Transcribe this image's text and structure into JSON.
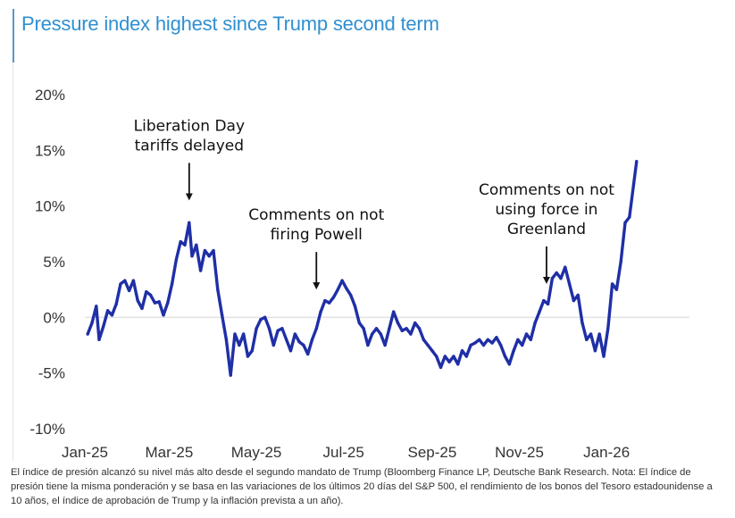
{
  "chart_data": {
    "type": "line",
    "title": "Pressure index highest since Trump second term",
    "xlabel": "",
    "ylabel": "",
    "ylim": [
      -10,
      20
    ],
    "yticks": [
      20,
      15,
      10,
      5,
      0,
      -5,
      -10
    ],
    "ytick_labels": [
      "20%",
      "15%",
      "10%",
      "5%",
      "0%",
      "-5%",
      "-10%"
    ],
    "x_range": [
      "2025-01-01",
      "2026-02-28"
    ],
    "xticks": [
      "2025-01-01",
      "2025-03-01",
      "2025-05-01",
      "2025-07-01",
      "2025-09-01",
      "2025-11-01",
      "2026-01-01"
    ],
    "xtick_labels": [
      "Jan-25",
      "Mar-25",
      "May-25",
      "Jul-25",
      "Sep-25",
      "Nov-25",
      "Jan-26"
    ],
    "grid": false,
    "reference_line": 0,
    "series": [
      {
        "name": "",
        "color": "#1f2fa6",
        "points": [
          [
            "2025-01-03",
            -1.5
          ],
          [
            "2025-01-06",
            -0.5
          ],
          [
            "2025-01-09",
            1.0
          ],
          [
            "2025-01-11",
            -2.0
          ],
          [
            "2025-01-14",
            -0.8
          ],
          [
            "2025-01-17",
            0.6
          ],
          [
            "2025-01-20",
            0.2
          ],
          [
            "2025-01-23",
            1.2
          ],
          [
            "2025-01-26",
            3.0
          ],
          [
            "2025-01-29",
            3.3
          ],
          [
            "2025-02-01",
            2.4
          ],
          [
            "2025-02-04",
            3.3
          ],
          [
            "2025-02-07",
            1.5
          ],
          [
            "2025-02-10",
            0.8
          ],
          [
            "2025-02-13",
            2.3
          ],
          [
            "2025-02-16",
            2.0
          ],
          [
            "2025-02-19",
            1.3
          ],
          [
            "2025-02-22",
            1.4
          ],
          [
            "2025-02-25",
            0.2
          ],
          [
            "2025-02-28",
            1.3
          ],
          [
            "2025-03-03",
            3.0
          ],
          [
            "2025-03-06",
            5.2
          ],
          [
            "2025-03-09",
            6.8
          ],
          [
            "2025-03-12",
            6.5
          ],
          [
            "2025-03-15",
            8.5
          ],
          [
            "2025-03-17",
            5.5
          ],
          [
            "2025-03-20",
            6.5
          ],
          [
            "2025-03-23",
            4.2
          ],
          [
            "2025-03-26",
            6.0
          ],
          [
            "2025-03-29",
            5.5
          ],
          [
            "2025-04-01",
            6.0
          ],
          [
            "2025-04-04",
            2.5
          ],
          [
            "2025-04-07",
            0.2
          ],
          [
            "2025-04-10",
            -2.0
          ],
          [
            "2025-04-13",
            -5.2
          ],
          [
            "2025-04-16",
            -1.5
          ],
          [
            "2025-04-19",
            -2.5
          ],
          [
            "2025-04-22",
            -1.5
          ],
          [
            "2025-04-25",
            -3.5
          ],
          [
            "2025-04-28",
            -3.0
          ],
          [
            "2025-05-01",
            -1.0
          ],
          [
            "2025-05-04",
            -0.2
          ],
          [
            "2025-05-07",
            0.0
          ],
          [
            "2025-05-10",
            -1.0
          ],
          [
            "2025-05-13",
            -2.5
          ],
          [
            "2025-05-16",
            -1.2
          ],
          [
            "2025-05-19",
            -1.0
          ],
          [
            "2025-05-22",
            -2.0
          ],
          [
            "2025-05-25",
            -3.0
          ],
          [
            "2025-05-28",
            -1.5
          ],
          [
            "2025-05-31",
            -2.2
          ],
          [
            "2025-06-03",
            -2.5
          ],
          [
            "2025-06-06",
            -3.3
          ],
          [
            "2025-06-09",
            -2.0
          ],
          [
            "2025-06-12",
            -1.0
          ],
          [
            "2025-06-15",
            0.5
          ],
          [
            "2025-06-18",
            1.5
          ],
          [
            "2025-06-21",
            1.3
          ],
          [
            "2025-06-24",
            1.8
          ],
          [
            "2025-06-27",
            2.5
          ],
          [
            "2025-06-30",
            3.3
          ],
          [
            "2025-07-03",
            2.6
          ],
          [
            "2025-07-06",
            2.0
          ],
          [
            "2025-07-09",
            1.0
          ],
          [
            "2025-07-12",
            -0.5
          ],
          [
            "2025-07-15",
            -1.0
          ],
          [
            "2025-07-18",
            -2.5
          ],
          [
            "2025-07-21",
            -1.5
          ],
          [
            "2025-07-24",
            -1.0
          ],
          [
            "2025-07-27",
            -1.5
          ],
          [
            "2025-07-30",
            -2.5
          ],
          [
            "2025-08-02",
            -1.0
          ],
          [
            "2025-08-05",
            0.5
          ],
          [
            "2025-08-08",
            -0.5
          ],
          [
            "2025-08-11",
            -1.2
          ],
          [
            "2025-08-14",
            -1.0
          ],
          [
            "2025-08-17",
            -1.5
          ],
          [
            "2025-08-20",
            -0.5
          ],
          [
            "2025-08-23",
            -1.0
          ],
          [
            "2025-08-26",
            -2.0
          ],
          [
            "2025-08-29",
            -2.5
          ],
          [
            "2025-09-01",
            -3.0
          ],
          [
            "2025-09-04",
            -3.5
          ],
          [
            "2025-09-07",
            -4.5
          ],
          [
            "2025-09-10",
            -3.5
          ],
          [
            "2025-09-13",
            -4.0
          ],
          [
            "2025-09-16",
            -3.5
          ],
          [
            "2025-09-19",
            -4.2
          ],
          [
            "2025-09-22",
            -3.0
          ],
          [
            "2025-09-25",
            -3.5
          ],
          [
            "2025-09-28",
            -2.5
          ],
          [
            "2025-10-01",
            -2.3
          ],
          [
            "2025-10-04",
            -2.0
          ],
          [
            "2025-10-07",
            -2.5
          ],
          [
            "2025-10-10",
            -2.0
          ],
          [
            "2025-10-13",
            -2.3
          ],
          [
            "2025-10-16",
            -1.8
          ],
          [
            "2025-10-19",
            -2.5
          ],
          [
            "2025-10-22",
            -3.5
          ],
          [
            "2025-10-25",
            -4.2
          ],
          [
            "2025-10-28",
            -3.0
          ],
          [
            "2025-10-31",
            -2.0
          ],
          [
            "2025-11-03",
            -2.5
          ],
          [
            "2025-11-06",
            -1.5
          ],
          [
            "2025-11-09",
            -2.0
          ],
          [
            "2025-11-12",
            -0.5
          ],
          [
            "2025-11-15",
            0.5
          ],
          [
            "2025-11-18",
            1.5
          ],
          [
            "2025-11-21",
            1.2
          ],
          [
            "2025-11-24",
            3.5
          ],
          [
            "2025-11-27",
            4.0
          ],
          [
            "2025-11-30",
            3.5
          ],
          [
            "2025-12-03",
            4.5
          ],
          [
            "2025-12-06",
            3.0
          ],
          [
            "2025-12-09",
            1.5
          ],
          [
            "2025-12-12",
            2.0
          ],
          [
            "2025-12-15",
            -0.5
          ],
          [
            "2025-12-18",
            -2.0
          ],
          [
            "2025-12-21",
            -1.5
          ],
          [
            "2025-12-24",
            -3.0
          ],
          [
            "2025-12-27",
            -1.5
          ],
          [
            "2025-12-30",
            -3.5
          ],
          [
            "2026-01-02",
            -1.0
          ],
          [
            "2026-01-05",
            3.0
          ],
          [
            "2026-01-08",
            2.5
          ],
          [
            "2026-01-11",
            5.0
          ],
          [
            "2026-01-14",
            8.5
          ],
          [
            "2026-01-17",
            9.0
          ],
          [
            "2026-01-20",
            12.0
          ],
          [
            "2026-01-22",
            14.0
          ]
        ]
      }
    ],
    "annotations": [
      {
        "lines": [
          "Liberation Day",
          "tariffs delayed"
        ],
        "arrow_to": [
          "2025-03-15",
          10.5
        ]
      },
      {
        "lines": [
          "Comments on not",
          "firing Powell"
        ],
        "arrow_to": [
          "2025-06-12",
          2.5
        ]
      },
      {
        "lines": [
          "Comments on not",
          "using force in",
          "Greenland"
        ],
        "arrow_to": [
          "2025-11-20",
          3.0
        ]
      }
    ]
  },
  "caption": "El índice de presión alcanzó su nivel más alto desde el segundo mandato de Trump (Bloomberg Finance LP, Deutsche Bank Research. Nota: El índice de presión tiene la misma ponderación y se basa en las variaciones de los últimos 20 días del S&P 500, el rendimiento de los bonos del Tesoro estadounidense a 10 años, el índice de aprobación de Trump y la inflación prevista a un año)."
}
